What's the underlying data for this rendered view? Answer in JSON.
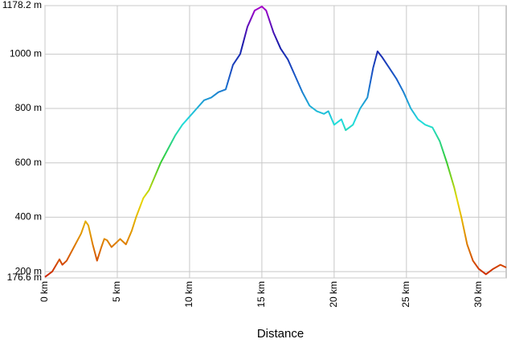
{
  "chart_data": {
    "type": "line",
    "xlabel": "Distance",
    "x": [
      0,
      0.5,
      1.0,
      1.2,
      1.5,
      2.0,
      2.5,
      2.8,
      3.0,
      3.3,
      3.6,
      3.9,
      4.1,
      4.3,
      4.6,
      5.0,
      5.2,
      5.6,
      6.0,
      6.3,
      6.8,
      7.2,
      7.6,
      8.0,
      8.5,
      9.0,
      9.5,
      10.0,
      10.5,
      11.0,
      11.5,
      12.0,
      12.5,
      13.0,
      13.5,
      14.0,
      14.5,
      15.0,
      15.3,
      15.8,
      16.3,
      16.8,
      17.3,
      17.8,
      18.3,
      18.8,
      19.3,
      19.6,
      20.0,
      20.5,
      20.8,
      21.3,
      21.8,
      22.3,
      22.7,
      23.0,
      23.3,
      23.8,
      24.3,
      24.8,
      25.3,
      25.8,
      26.3,
      26.8,
      27.3,
      27.8,
      28.3,
      28.8,
      29.2,
      29.6,
      30.0,
      30.5,
      31.0,
      31.5,
      31.9
    ],
    "values": [
      180,
      200,
      245,
      225,
      240,
      290,
      340,
      385,
      370,
      300,
      240,
      290,
      320,
      315,
      290,
      310,
      320,
      300,
      350,
      400,
      470,
      500,
      550,
      600,
      650,
      700,
      740,
      770,
      800,
      830,
      840,
      860,
      870,
      960,
      1000,
      1100,
      1160,
      1175,
      1160,
      1080,
      1020,
      980,
      920,
      860,
      810,
      790,
      780,
      790,
      740,
      760,
      720,
      740,
      800,
      840,
      950,
      1010,
      990,
      950,
      910,
      860,
      800,
      760,
      740,
      730,
      680,
      600,
      510,
      400,
      300,
      240,
      210,
      190,
      210,
      225,
      215
    ],
    "color_scale": [
      "#cc2200",
      "#e08a00",
      "#e8d800",
      "#33cc33",
      "#22dddd",
      "#1a66cc",
      "#1a1aaa",
      "#aa00cc"
    ],
    "xlim": [
      0,
      31.9
    ],
    "xticks": [
      {
        "value": 0,
        "label": "0 km"
      },
      {
        "value": 5,
        "label": "5 km"
      },
      {
        "value": 10,
        "label": "10 km"
      },
      {
        "value": 15,
        "label": "15 km"
      },
      {
        "value": 20,
        "label": "20 km"
      },
      {
        "value": 25,
        "label": "25 km"
      },
      {
        "value": 30,
        "label": "30 km"
      }
    ],
    "ylim": [
      176.6,
      1178.2
    ],
    "yticks": [
      {
        "value": 176.6,
        "label": "176.6 m"
      },
      {
        "value": 200,
        "label": "200 m"
      },
      {
        "value": 400,
        "label": "400 m"
      },
      {
        "value": 600,
        "label": "600 m"
      },
      {
        "value": 800,
        "label": "800 m"
      },
      {
        "value": 1000,
        "label": "1000 m"
      },
      {
        "value": 1178.2,
        "label": "1178.2 m"
      }
    ],
    "grid": true
  }
}
